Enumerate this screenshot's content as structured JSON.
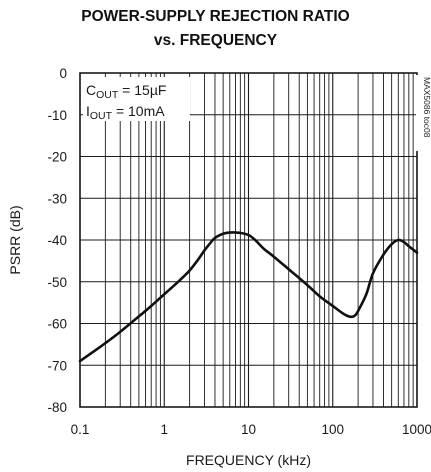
{
  "chart_data": {
    "type": "line",
    "title": "POWER-SUPPLY REJECTION RATIO",
    "subtitle": "vs. FREQUENCY",
    "xlabel": "FREQUENCY (kHz)",
    "ylabel": "PSRR (dB)",
    "xscale": "log",
    "xlim": [
      0.1,
      1000
    ],
    "ylim": [
      -80,
      0
    ],
    "grid": true,
    "xticks": [
      0.1,
      1,
      10,
      100,
      1000
    ],
    "xtick_labels": [
      "0.1",
      "1",
      "10",
      "100",
      "1000"
    ],
    "yticks": [
      0,
      -10,
      -20,
      -30,
      -40,
      -50,
      -60,
      -70,
      -80
    ],
    "ytick_labels": [
      "0",
      "-10",
      "-20",
      "-30",
      "-40",
      "-50",
      "-60",
      "-70",
      "-80"
    ],
    "annotations": {
      "cout_main": "C",
      "cout_sub": "OUT",
      "cout_value": " = 15µF",
      "iout_main": "I",
      "iout_sub": "OUT",
      "iout_value": " = 10mA"
    },
    "side_label": "MAX5086 toc08",
    "series": [
      {
        "x": [
          0.1,
          0.15,
          0.2,
          0.3,
          0.5,
          0.7,
          1,
          1.5,
          2,
          2.5,
          3,
          3.5,
          4,
          5,
          6,
          7,
          8,
          10,
          12,
          15,
          20,
          30,
          50,
          70,
          100,
          130,
          150,
          170,
          185,
          200,
          250,
          300,
          400,
          500,
          600,
          700,
          800,
          900,
          1000
        ],
        "y": [
          -69,
          -66.5,
          -64.7,
          -62,
          -58.3,
          -55.8,
          -53,
          -49.8,
          -47.3,
          -44.8,
          -42.5,
          -40.8,
          -39.5,
          -38.5,
          -38.2,
          -38.2,
          -38.3,
          -38.8,
          -40,
          -42,
          -44,
          -47,
          -50.8,
          -53.5,
          -55.8,
          -57.5,
          -58.2,
          -58.4,
          -58,
          -57,
          -53,
          -48,
          -43.5,
          -41,
          -40,
          -40.5,
          -41.5,
          -42.3,
          -43
        ]
      }
    ]
  }
}
